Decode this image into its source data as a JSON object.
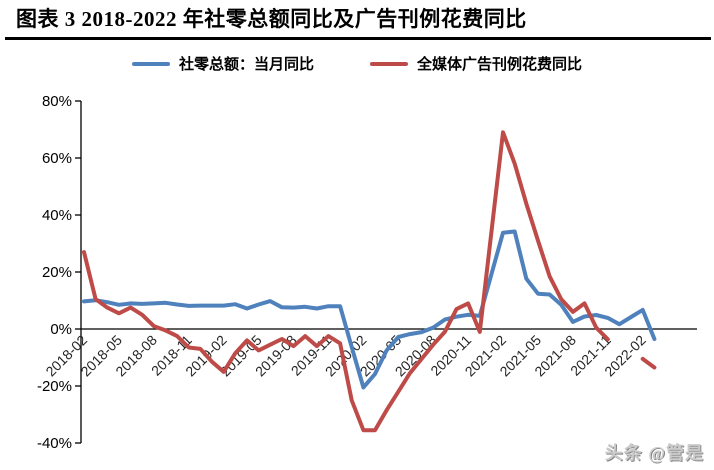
{
  "header": {
    "title": "图表 3 2018-2022 年社零总额同比及广告刊例花费同比"
  },
  "watermark": {
    "text": "头条 @管是"
  },
  "chart_data": {
    "type": "line",
    "title": "图表 3 2018-2022 年社零总额同比及广告刊例花费同比",
    "xlabel": "",
    "ylabel": "",
    "ylim": [
      -40,
      80
    ],
    "y_tick_step": 20,
    "grid": false,
    "legend_position": "top-center",
    "axis_color": "#000000",
    "tick_label_color": "#262626",
    "y_ticks": [
      "80%",
      "60%",
      "40%",
      "20%",
      "0%",
      "-20%",
      "-40%"
    ],
    "x_tick_labels": [
      "2018-02",
      "2018-05",
      "2018-08",
      "2018-11",
      "2019-02",
      "2019-05",
      "2019-08",
      "2019-11",
      "2020-02",
      "2020-05",
      "2020-08",
      "2020-11",
      "2021-02",
      "2021-05",
      "2021-08",
      "2021-11",
      "2022-02"
    ],
    "x": [
      "2018-02",
      "2018-03",
      "2018-04",
      "2018-05",
      "2018-06",
      "2018-07",
      "2018-08",
      "2018-09",
      "2018-10",
      "2018-11",
      "2018-12",
      "2019-01",
      "2019-02",
      "2019-03",
      "2019-04",
      "2019-05",
      "2019-06",
      "2019-07",
      "2019-08",
      "2019-09",
      "2019-10",
      "2019-11",
      "2019-12",
      "2020-01",
      "2020-02",
      "2020-03",
      "2020-04",
      "2020-05",
      "2020-06",
      "2020-07",
      "2020-08",
      "2020-09",
      "2020-10",
      "2020-11",
      "2020-12",
      "2021-01",
      "2021-02",
      "2021-03",
      "2021-04",
      "2021-05",
      "2021-06",
      "2021-07",
      "2021-08",
      "2021-09",
      "2021-10",
      "2021-11",
      "2021-12",
      "2022-01",
      "2022-02",
      "2022-03"
    ],
    "series": [
      {
        "key": "retail-yoy",
        "name": "社零总额：当月同比",
        "color": "#4F81BD",
        "values": [
          9.7,
          10.1,
          9.4,
          8.5,
          9.0,
          8.8,
          9.0,
          9.2,
          8.6,
          8.1,
          8.2,
          8.2,
          8.2,
          8.7,
          7.2,
          8.6,
          9.8,
          7.6,
          7.5,
          7.8,
          7.2,
          8.0,
          8.0,
          -6.3,
          -20.5,
          -15.8,
          -7.5,
          -2.8,
          -1.8,
          -1.1,
          0.5,
          3.3,
          4.3,
          5.0,
          4.6,
          19.2,
          33.8,
          34.2,
          17.7,
          12.4,
          12.1,
          8.5,
          2.5,
          4.4,
          4.9,
          3.9,
          1.7,
          4.2,
          6.7,
          -3.5
        ]
      },
      {
        "key": "ad-spend-yoy",
        "name": "全媒体广告刊例花费同比",
        "color": "#BE4B48",
        "values": [
          27.0,
          10.5,
          7.5,
          5.5,
          7.5,
          5.0,
          1.0,
          -0.5,
          -2.5,
          -6.5,
          -7.0,
          -11.5,
          -15.0,
          -8.5,
          -4.0,
          -7.5,
          -5.5,
          -3.5,
          -6.0,
          -2.5,
          -6.0,
          -2.5,
          -5.0,
          -25.0,
          -35.5,
          -35.5,
          -28.5,
          -22.0,
          -15.5,
          -10.5,
          -5.5,
          -1.0,
          7.0,
          9.0,
          -1.0,
          34.0,
          69.0,
          58.0,
          44.0,
          31.0,
          18.5,
          10.5,
          6.0,
          9.0,
          0.5,
          -3.6,
          null,
          null,
          -10.5,
          -13.5
        ]
      }
    ]
  }
}
